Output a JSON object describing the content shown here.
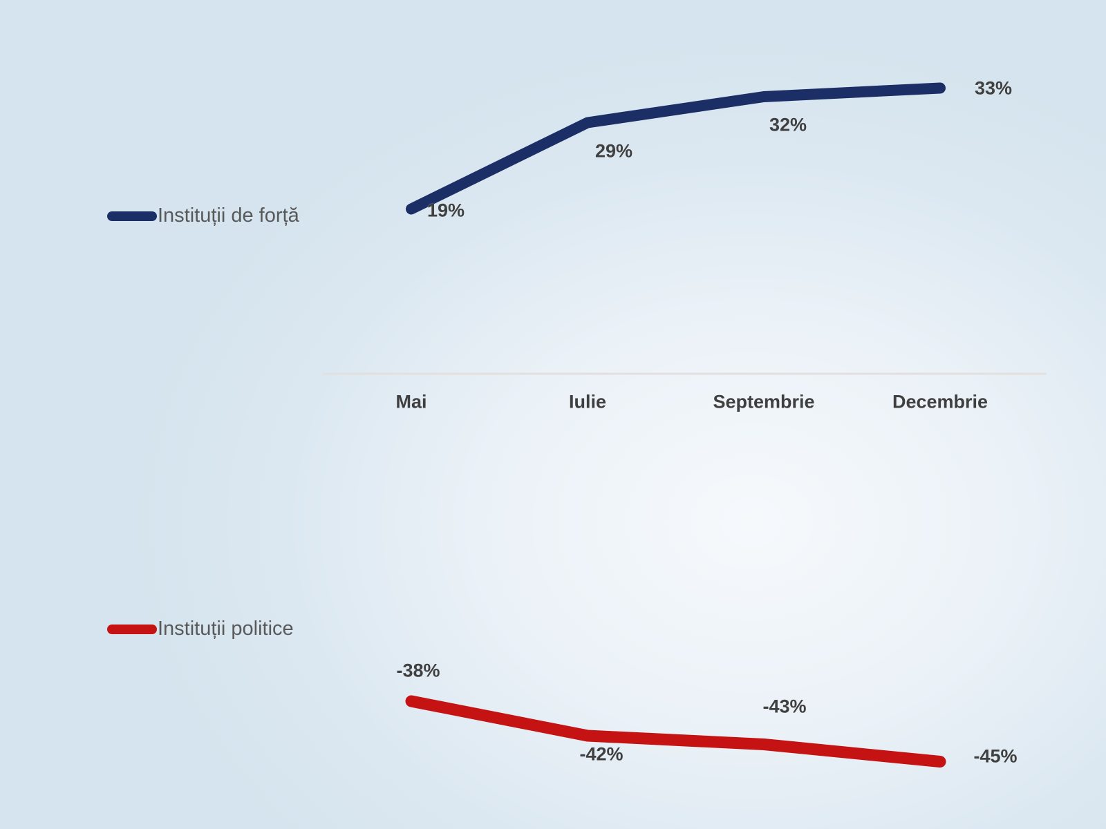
{
  "chart_data": {
    "type": "line",
    "categories": [
      "Mai",
      "Iulie",
      "Septembrie",
      "Decembrie"
    ],
    "series": [
      {
        "name": "Instituții de forță",
        "values": [
          19,
          29,
          32,
          33
        ],
        "labels": [
          "19%",
          "29%",
          "32%",
          "33%"
        ],
        "color": "#1c2e66"
      },
      {
        "name": "Instituții politice",
        "values": [
          -38,
          -42,
          -43,
          -45
        ],
        "labels": [
          "-38%",
          "-42%",
          "-43%",
          "-45%"
        ],
        "color": "#c51212"
      }
    ],
    "title": "",
    "xlabel": "",
    "ylabel": "",
    "ylim": [
      -50,
      40
    ],
    "grid": false,
    "legend_position": "left",
    "zero_axis_line": true
  },
  "colors": {
    "background_center": "#f6f9fc",
    "background_edge": "#d5e4ee",
    "axis_line": "#e2dfdf",
    "data_label_text": "#404040",
    "axis_label_text": "#3f3f3f",
    "legend_text": "#595959"
  }
}
